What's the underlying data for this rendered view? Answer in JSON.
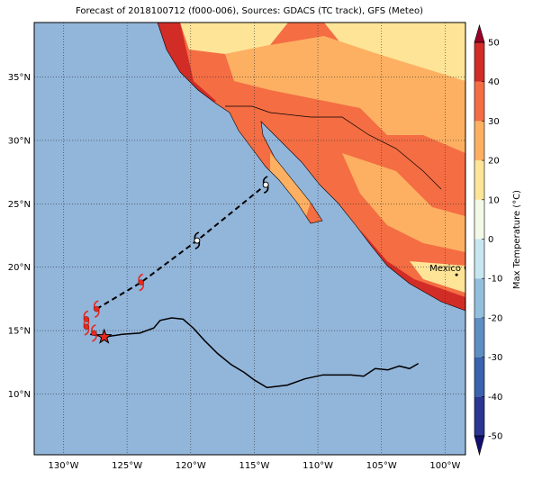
{
  "chart_data": {
    "type": "map",
    "title": "Forecast of 2018100712 (f000-006), Sources: GDACS (TC track), GFS (Meteo)",
    "xlim": [
      -132.3,
      -98.4
    ],
    "ylim": [
      5.2,
      39.3
    ],
    "xticks": [
      {
        "value": -130,
        "label": "130°W"
      },
      {
        "value": -125,
        "label": "125°W"
      },
      {
        "value": -120,
        "label": "120°W"
      },
      {
        "value": -115,
        "label": "115°W"
      },
      {
        "value": -110,
        "label": "110°W"
      },
      {
        "value": -105,
        "label": "105°W"
      },
      {
        "value": -100,
        "label": "100°W"
      }
    ],
    "yticks": [
      {
        "value": 10,
        "label": "10°N"
      },
      {
        "value": 15,
        "label": "15°N"
      },
      {
        "value": 20,
        "label": "20°N"
      },
      {
        "value": 25,
        "label": "25°N"
      },
      {
        "value": 30,
        "label": "30°N"
      },
      {
        "value": 35,
        "label": "35°N"
      }
    ],
    "grid": true,
    "past_track": {
      "color": "#000000",
      "x": [
        -127.9,
        -126.7,
        -125.4,
        -124.0,
        -122.9,
        -122.4,
        -121.5,
        -120.6,
        -119.8,
        -118.9,
        -117.9,
        -116.8,
        -115.8,
        -115.0,
        -114.0,
        -112.4,
        -111.0,
        -109.6,
        -107.4,
        -106.4,
        -105.5,
        -104.5,
        -103.6,
        -102.8,
        -102.1
      ],
      "y": [
        14.7,
        14.5,
        14.7,
        14.8,
        15.2,
        15.8,
        16.0,
        15.9,
        15.2,
        14.2,
        13.2,
        12.3,
        11.7,
        11.1,
        10.5,
        10.7,
        11.2,
        11.5,
        11.5,
        11.4,
        12.0,
        11.9,
        12.2,
        12.0,
        12.4
      ]
    },
    "forecast_track": {
      "color": "#000000",
      "x": [
        -127.4,
        -123.9,
        -119.5,
        -114.1
      ],
      "y": [
        16.7,
        18.8,
        22.1,
        26.5
      ]
    },
    "storm_symbols": {
      "x": [
        -127.4,
        -128.2,
        -128.2,
        -127.6,
        -123.9,
        -119.5,
        -114.1
      ],
      "y": [
        16.7,
        15.9,
        15.3,
        14.8,
        18.8,
        22.1,
        26.5
      ],
      "colors": [
        "#e8281e",
        "#e8281e",
        "#e8281e",
        "#e8281e",
        "#e8281e",
        "#ffffff",
        "#ffffff"
      ]
    },
    "current_position": {
      "x": -126.8,
      "y": 14.5,
      "color": "#e8281e"
    },
    "places": [
      {
        "label": "Mexico City",
        "x": -99.1,
        "y": 19.4
      }
    ],
    "colorbar": {
      "label": "Max Temperature (°C)",
      "ticks": [
        -50,
        -40,
        -30,
        -20,
        -10,
        0,
        10,
        20,
        30,
        40,
        50
      ],
      "colors": [
        "#2b3593",
        "#3a62ad",
        "#5e8fc2",
        "#92bfdc",
        "#c8e6f0",
        "#f2f9e6",
        "#fee497",
        "#fdb062",
        "#f46d43",
        "#d22c26"
      ],
      "extend_colors": [
        "#111070",
        "#9a0026"
      ]
    }
  }
}
